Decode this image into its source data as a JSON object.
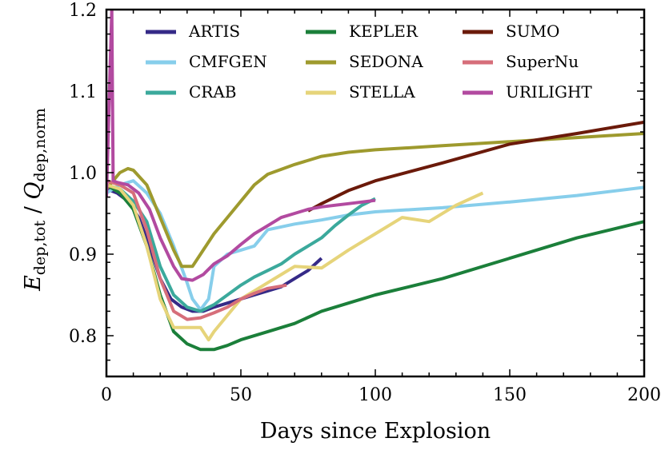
{
  "chart_data": {
    "type": "line",
    "xlabel": "Days since Explosion",
    "ylabel": {
      "base": "E",
      "base_sub": "dep,tot",
      "sep": " / ",
      "base2": "Q",
      "base2_sub": "dep,norm"
    },
    "xlim": [
      0,
      200
    ],
    "ylim": [
      0.75,
      1.2
    ],
    "xticks": [
      0,
      50,
      100,
      150,
      200
    ],
    "xtick_labels": [
      "0",
      "50",
      "100",
      "150",
      "200"
    ],
    "yticks": [
      0.8,
      0.9,
      1.0,
      1.1,
      1.2
    ],
    "ytick_labels": [
      "0.8",
      "0.9",
      "1.0",
      "1.1",
      "1.2"
    ],
    "grid": false,
    "legend_position": "top",
    "series": [
      {
        "name": "ARTIS",
        "color": "#352a87",
        "x": [
          0,
          4,
          8,
          12,
          16,
          20,
          24,
          28,
          32,
          36,
          40,
          45,
          50,
          55,
          60,
          65,
          70,
          75,
          80
        ],
        "y": [
          0.98,
          0.975,
          0.965,
          0.945,
          0.91,
          0.87,
          0.845,
          0.835,
          0.83,
          0.83,
          0.835,
          0.84,
          0.845,
          0.85,
          0.855,
          0.86,
          0.87,
          0.88,
          0.895
        ]
      },
      {
        "name": "CMFGEN",
        "color": "#87ceeb",
        "x": [
          0,
          5,
          10,
          15,
          20,
          25,
          30,
          32,
          35,
          38,
          40,
          45,
          50,
          55,
          60,
          70,
          80,
          90,
          100,
          110,
          125,
          150,
          175,
          200
        ],
        "y": [
          0.975,
          0.985,
          0.99,
          0.975,
          0.95,
          0.91,
          0.865,
          0.845,
          0.832,
          0.845,
          0.885,
          0.9,
          0.905,
          0.91,
          0.93,
          0.937,
          0.942,
          0.948,
          0.952,
          0.954,
          0.957,
          0.964,
          0.972,
          0.982
        ]
      },
      {
        "name": "CRAB",
        "color": "#3ba99c",
        "x": [
          0,
          5,
          10,
          15,
          20,
          25,
          30,
          35,
          40,
          45,
          50,
          55,
          60,
          65,
          70,
          75,
          80,
          85,
          90,
          95,
          100
        ],
        "y": [
          0.985,
          0.98,
          0.965,
          0.94,
          0.885,
          0.85,
          0.835,
          0.83,
          0.838,
          0.85,
          0.862,
          0.872,
          0.88,
          0.888,
          0.9,
          0.91,
          0.92,
          0.935,
          0.948,
          0.96,
          0.968
        ]
      },
      {
        "name": "KEPLER",
        "color": "#1b7f3a",
        "x": [
          0,
          5,
          10,
          15,
          20,
          25,
          30,
          35,
          40,
          45,
          50,
          60,
          70,
          80,
          90,
          100,
          125,
          150,
          175,
          200
        ],
        "y": [
          0.985,
          0.975,
          0.955,
          0.91,
          0.85,
          0.805,
          0.79,
          0.783,
          0.783,
          0.788,
          0.795,
          0.805,
          0.815,
          0.83,
          0.84,
          0.85,
          0.87,
          0.895,
          0.92,
          0.94
        ]
      },
      {
        "name": "SEDONA",
        "color": "#9e9a2e",
        "x": [
          0,
          5,
          8,
          10,
          15,
          20,
          25,
          28,
          32,
          35,
          40,
          45,
          50,
          55,
          60,
          70,
          80,
          90,
          100,
          110,
          125,
          150,
          175,
          200
        ],
        "y": [
          0.98,
          1.0,
          1.005,
          1.003,
          0.985,
          0.945,
          0.905,
          0.885,
          0.885,
          0.9,
          0.925,
          0.945,
          0.965,
          0.985,
          0.998,
          1.01,
          1.02,
          1.025,
          1.028,
          1.03,
          1.033,
          1.038,
          1.043,
          1.048
        ]
      },
      {
        "name": "STELLA",
        "color": "#e6d47a",
        "x": [
          0,
          5,
          10,
          15,
          20,
          25,
          30,
          35,
          38,
          40,
          45,
          50,
          55,
          60,
          65,
          70,
          80,
          90,
          100,
          110,
          120,
          130,
          140
        ],
        "y": [
          0.985,
          0.98,
          0.96,
          0.91,
          0.845,
          0.81,
          0.81,
          0.81,
          0.795,
          0.805,
          0.825,
          0.845,
          0.855,
          0.865,
          0.875,
          0.885,
          0.883,
          0.905,
          0.925,
          0.945,
          0.94,
          0.96,
          0.975
        ]
      },
      {
        "name": "SUMO",
        "color": "#6b1a0a",
        "x": [
          75,
          80,
          90,
          100,
          125,
          150,
          175,
          200
        ],
        "y": [
          0.953,
          0.962,
          0.978,
          0.99,
          1.012,
          1.035,
          1.048,
          1.062
        ]
      },
      {
        "name": "SuperNu",
        "color": "#d66e7a",
        "x": [
          0,
          5,
          10,
          15,
          20,
          25,
          30,
          35,
          40,
          45,
          50,
          55,
          60,
          67
        ],
        "y": [
          0.99,
          0.985,
          0.975,
          0.93,
          0.87,
          0.83,
          0.82,
          0.822,
          0.828,
          0.835,
          0.845,
          0.852,
          0.858,
          0.862
        ]
      },
      {
        "name": "URILIGHT",
        "color": "#b24aa0",
        "x": [
          0,
          2,
          2.5,
          4,
          8,
          12,
          16,
          20,
          25,
          28,
          32,
          36,
          40,
          45,
          50,
          55,
          60,
          65,
          70,
          75,
          80,
          90,
          100
        ],
        "y": [
          0.97,
          1.2,
          0.99,
          0.988,
          0.985,
          0.975,
          0.955,
          0.92,
          0.885,
          0.87,
          0.868,
          0.875,
          0.888,
          0.898,
          0.912,
          0.925,
          0.935,
          0.945,
          0.95,
          0.955,
          0.958,
          0.962,
          0.966
        ]
      }
    ]
  }
}
